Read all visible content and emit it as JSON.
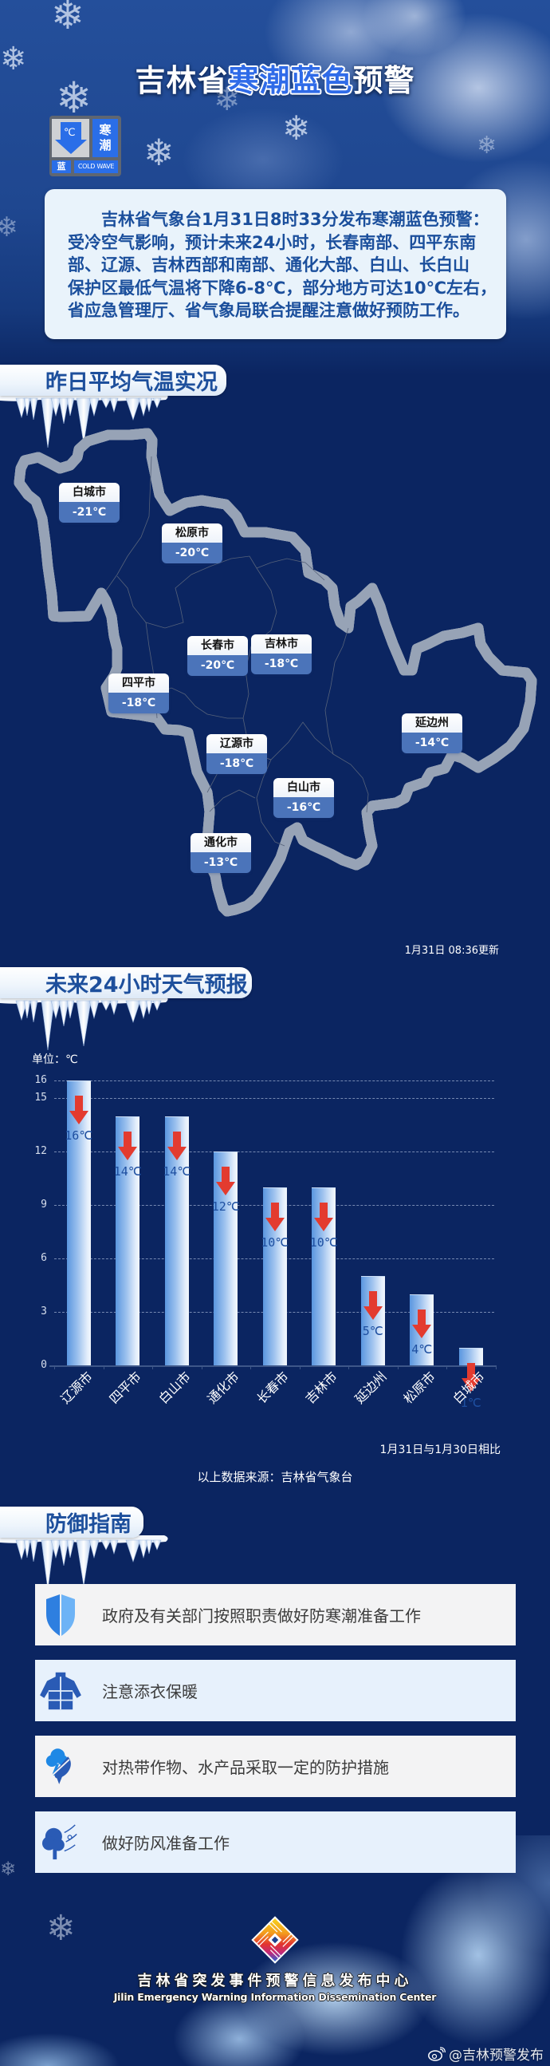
{
  "header": {
    "title": {
      "prefix": "吉林省",
      "highlight": "寒潮蓝色",
      "suffix": "预警"
    },
    "badge": {
      "unit": "℃",
      "type_chars": [
        "寒",
        "潮"
      ],
      "level": "蓝",
      "english": "COLD WAVE",
      "icon": "temperature-drop-icon"
    }
  },
  "warning": {
    "lines": [
      "吉林省气象台1月31日8时33分发布寒潮蓝色预警：",
      "受冷空气影响，预计未来24小时，长春南部、四平东南",
      "部、辽源、吉林西部和南部、通化大部、白山、长白山",
      "保护区最低气温将下降6-8℃，部分地方可达10℃左右，",
      "省应急管理厅、省气象局联合提醒注意做好预防工作。"
    ]
  },
  "observed": {
    "title": "昨日平均气温实况",
    "update_time": "1月31日 08:36更新",
    "cities": [
      {
        "name": "白城市",
        "temp": "-21℃"
      },
      {
        "name": "松原市",
        "temp": "-20℃"
      },
      {
        "name": "长春市",
        "temp": "-20℃"
      },
      {
        "name": "吉林市",
        "temp": "-18℃"
      },
      {
        "name": "四平市",
        "temp": "-18℃"
      },
      {
        "name": "辽源市",
        "temp": "-18℃"
      },
      {
        "name": "白山市",
        "temp": "-16℃"
      },
      {
        "name": "延边州",
        "temp": "-14℃"
      },
      {
        "name": "通化市",
        "temp": "-13℃"
      }
    ]
  },
  "forecast": {
    "title": "未来24小时天气预报",
    "unit_label": "单位：℃",
    "compare_note": "1月31日与1月30日相比",
    "source": "以上数据来源：吉林省气象台"
  },
  "guide": {
    "title": "防御指南",
    "items": [
      {
        "icon": "shield-icon",
        "text": "政府及有关部门按照职责做好防寒潮准备工作"
      },
      {
        "icon": "jacket-icon",
        "text": "注意添衣保暖"
      },
      {
        "icon": "tree-fish-icon",
        "text": "对热带作物、水产品采取一定的防护措施"
      },
      {
        "icon": "tree-wind-icon",
        "text": "做好防风准备工作"
      }
    ]
  },
  "footer": {
    "org_cn": "吉林省突发事件预警信息发布中心",
    "org_en": "Jilin Emergency Warning Information Dissemination Center",
    "watermark": "@吉林预警发布"
  },
  "colors": {
    "page_background": "#0b2561",
    "title_highlight": "#2f6be8",
    "heading_text": "#1d4f9c",
    "warning_text": "#1b4f9c",
    "warning_box": "#e9f3fb",
    "map_fill": "#d6e5fa",
    "map_label_value_bg": "#4b74ba",
    "bar_gradient_start": "#5a96df",
    "bar_gradient_end": "#f2f7fd",
    "drop_arrow": "#e33b2f",
    "value_label": "#1e4fa0"
  },
  "chart_data": {
    "type": "bar",
    "title": "未来24小时天气预报",
    "categories": [
      "辽源市",
      "四平市",
      "白山市",
      "通化市",
      "长春市",
      "吉林市",
      "延边州",
      "松原市",
      "白城市"
    ],
    "values": [
      16,
      14,
      14,
      12,
      10,
      10,
      5,
      4,
      1
    ],
    "value_labels": [
      "16℃",
      "14℃",
      "14℃",
      "12℃",
      "10℃",
      "10℃",
      "5℃",
      "4℃",
      "1℃"
    ],
    "xlabel": "",
    "ylabel": "单位：℃",
    "ylim": [
      0,
      16
    ],
    "yticks": [
      0,
      3,
      6,
      9,
      12,
      15,
      16
    ],
    "grid": true,
    "legend": null,
    "bar_marker_icon": "down-arrow-icon",
    "annotation": "1月31日与1月30日相比",
    "source": "以上数据来源：吉林省气象台"
  }
}
